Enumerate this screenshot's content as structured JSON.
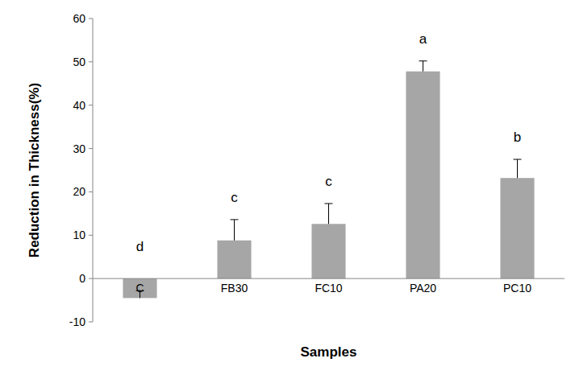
{
  "chart_data": {
    "type": "bar",
    "x_label": "Samples",
    "y_label": "Reduction in Thickness(%)",
    "categories": [
      "C",
      "FB30",
      "FC10",
      "PA20",
      "PC10"
    ],
    "values": [
      -4.5,
      8.8,
      12.6,
      47.8,
      23.2
    ],
    "errors": [
      1.7,
      4.8,
      4.7,
      2.4,
      4.3
    ],
    "letters": [
      "d",
      "c",
      "c",
      "a",
      "b"
    ],
    "color": "#a6a6a6",
    "ylim": [
      -10,
      60
    ],
    "yticks": [
      -10,
      0,
      10,
      20,
      30,
      40,
      50,
      60
    ],
    "grid": false
  }
}
